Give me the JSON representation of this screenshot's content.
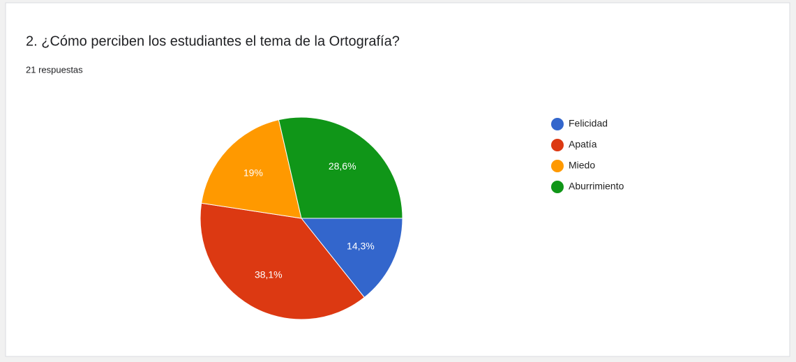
{
  "chart_data": {
    "type": "pie",
    "title": "2. ¿Cómo perciben los estudiantes el tema de la Ortografía?",
    "subtitle": "21 respuestas",
    "categories": [
      "Felicidad",
      "Apatía",
      "Miedo",
      "Aburrimiento"
    ],
    "values": [
      14.3,
      38.1,
      19,
      28.6
    ],
    "value_labels": [
      "14,3%",
      "38,1%",
      "19%",
      "28,6%"
    ],
    "colors": [
      "#3366cc",
      "#dc3912",
      "#ff9900",
      "#109618"
    ],
    "legend": "right"
  }
}
